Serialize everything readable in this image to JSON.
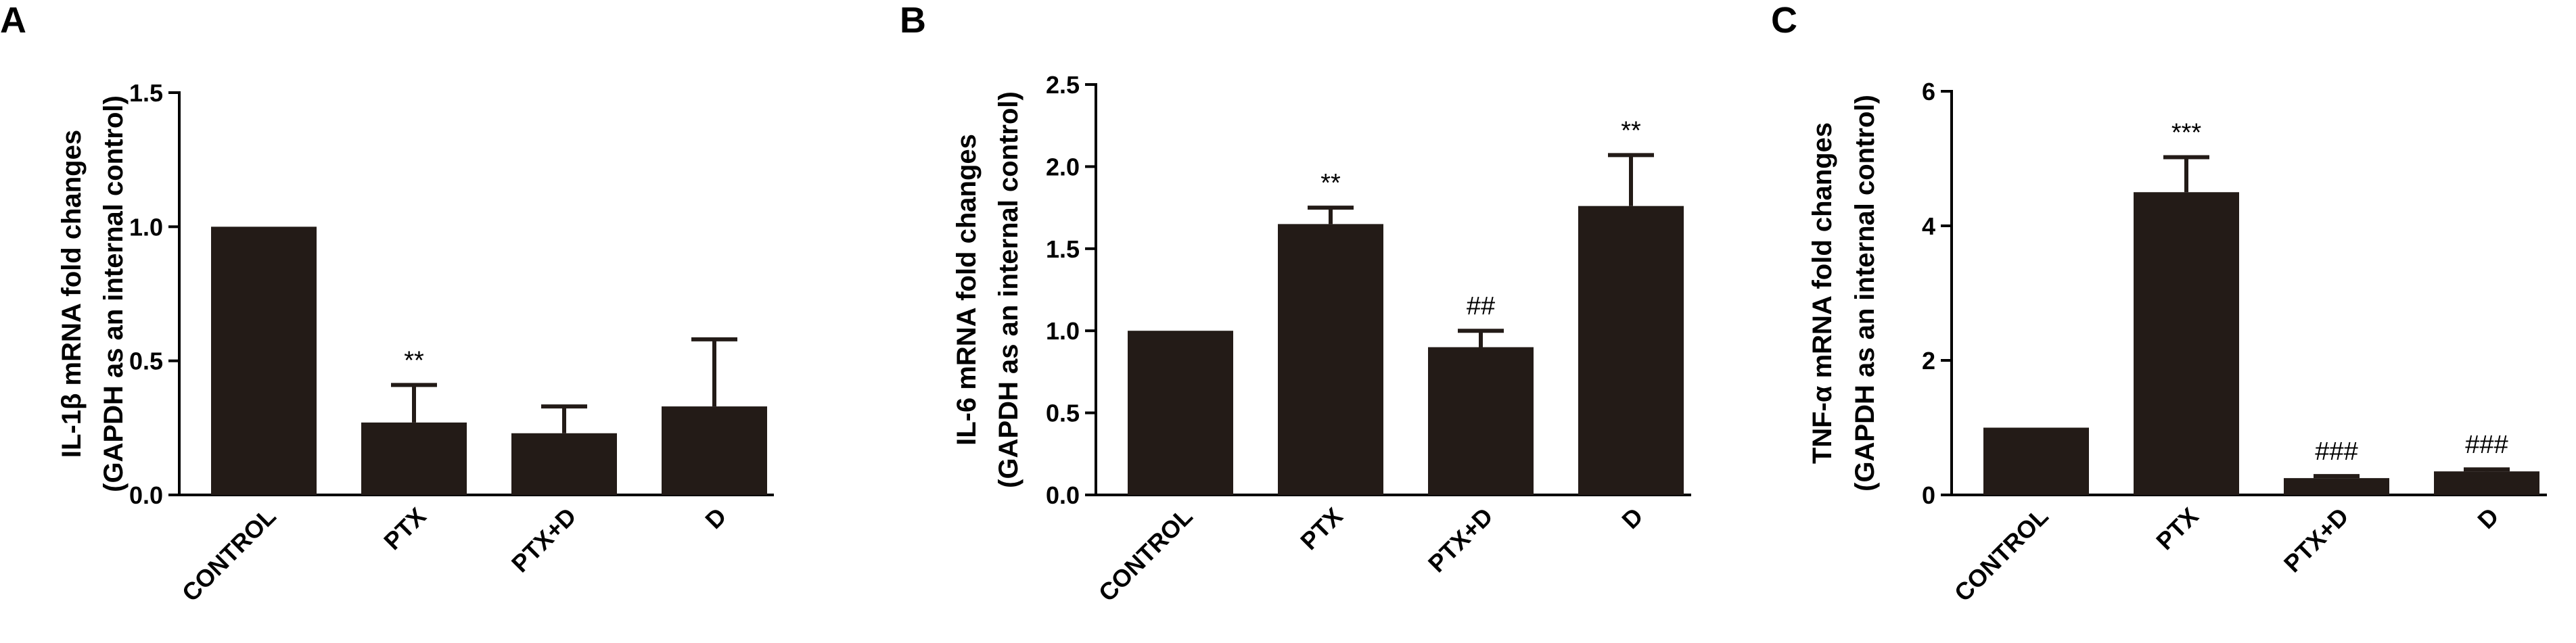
{
  "chart_data": [
    {
      "type": "bar",
      "panel": "A",
      "ylabel_lines": [
        "IL-1β  mRNA fold changes",
        "(GAPDH as an internal control)"
      ],
      "xlabel": "",
      "categories": [
        "CONTROL",
        "PTX",
        "PTX+D",
        "D"
      ],
      "values": [
        1.0,
        0.27,
        0.23,
        0.33
      ],
      "errors": [
        0.0,
        0.14,
        0.1,
        0.25
      ],
      "significance": [
        "",
        "**",
        "",
        ""
      ],
      "ylim": [
        0,
        1.5
      ],
      "yticks": [
        0,
        0.5,
        1.0,
        1.5
      ],
      "ytick_labels": [
        "0.0",
        "0.5",
        "1.0",
        "1.5"
      ],
      "grid": false,
      "bar_color": "#231b17"
    },
    {
      "type": "bar",
      "panel": "B",
      "ylabel_lines": [
        "IL-6 mRNA fold changes",
        "(GAPDH as an internal control)"
      ],
      "xlabel": "",
      "categories": [
        "CONTROL",
        "PTX",
        "PTX+D",
        "D"
      ],
      "values": [
        1.0,
        1.65,
        0.9,
        1.76
      ],
      "errors": [
        0.0,
        0.1,
        0.1,
        0.31
      ],
      "significance": [
        "",
        "**",
        "##",
        "**"
      ],
      "ylim": [
        0,
        2.5
      ],
      "yticks": [
        0,
        0.5,
        1.0,
        1.5,
        2.0,
        2.5
      ],
      "ytick_labels": [
        "0.0",
        "0.5",
        "1.0",
        "1.5",
        "2.0",
        "2.5"
      ],
      "grid": false,
      "bar_color": "#231b17"
    },
    {
      "type": "bar",
      "panel": "C",
      "ylabel_lines": [
        "TNF-α  mRNA fold changes",
        "(GAPDH as an internal control)"
      ],
      "xlabel": "",
      "categories": [
        "CONTROL",
        "PTX",
        "PTX+D",
        "D"
      ],
      "values": [
        1.0,
        4.5,
        0.25,
        0.35
      ],
      "errors": [
        0.0,
        0.52,
        0.03,
        0.03
      ],
      "significance": [
        "",
        "***",
        "###",
        "###"
      ],
      "ylim": [
        0,
        6
      ],
      "yticks": [
        0,
        2,
        4,
        6
      ],
      "ytick_labels": [
        "0",
        "2",
        "4",
        "6"
      ],
      "grid": false,
      "bar_color": "#231b17"
    }
  ]
}
